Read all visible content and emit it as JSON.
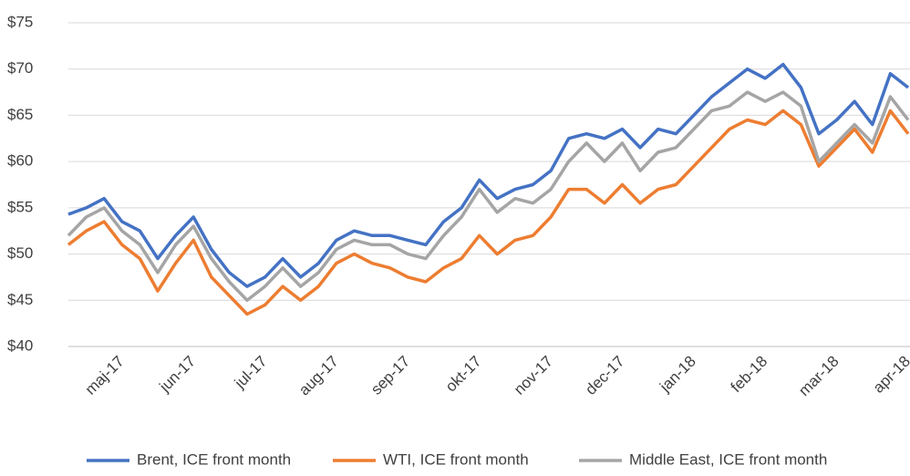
{
  "chart_data": {
    "type": "line",
    "categories": [
      null,
      null,
      null,
      "maj-17",
      null,
      null,
      null,
      "jun-17",
      null,
      null,
      null,
      "jul-17",
      null,
      null,
      null,
      "aug-17",
      null,
      null,
      null,
      "sep-17",
      null,
      null,
      null,
      "okt-17",
      null,
      null,
      null,
      "nov-17",
      null,
      null,
      null,
      "dec-17",
      null,
      null,
      null,
      "jan-18",
      null,
      null,
      null,
      "feb-18",
      null,
      null,
      null,
      "mar-18",
      null,
      null,
      null,
      "apr-18"
    ],
    "series": [
      {
        "name": "Brent, ICE front month",
        "color": "#4472c4",
        "values": [
          54.3,
          55,
          56,
          53.5,
          52.5,
          49.5,
          52,
          54,
          50.5,
          48,
          46.5,
          47.5,
          49.5,
          47.5,
          49,
          51.5,
          52.5,
          52,
          52,
          51.5,
          51,
          53.5,
          55,
          58,
          56,
          57,
          57.5,
          59,
          62.5,
          63,
          62.5,
          63.5,
          61.5,
          63.5,
          63,
          65,
          67,
          68.5,
          70,
          69,
          70.5,
          68,
          63,
          64.5,
          66.5,
          64,
          69.5,
          68
        ]
      },
      {
        "name": "WTI, ICE front month",
        "color": "#ed7d31",
        "values": [
          51,
          52.5,
          53.5,
          51,
          49.5,
          46,
          49,
          51.5,
          47.5,
          45.5,
          43.5,
          44.5,
          46.5,
          45,
          46.5,
          49,
          50,
          49,
          48.5,
          47.5,
          47,
          48.5,
          49.5,
          52,
          50,
          51.5,
          52,
          54,
          57,
          57,
          55.5,
          57.5,
          55.5,
          57,
          57.5,
          59.5,
          61.5,
          63.5,
          64.5,
          64,
          65.5,
          64,
          59.5,
          61.5,
          63.5,
          61,
          65.5,
          63
        ]
      },
      {
        "name": "Middle East, ICE front month",
        "color": "#a5a5a5",
        "values": [
          52,
          54,
          55,
          52.5,
          51,
          48,
          51,
          53,
          49.5,
          47,
          45,
          46.5,
          48.5,
          46.5,
          48,
          50.5,
          51.5,
          51,
          51,
          50,
          49.5,
          52,
          54,
          57,
          54.5,
          56,
          55.5,
          57,
          60,
          62,
          60,
          62,
          59,
          61,
          61.5,
          63.5,
          65.5,
          66,
          67.5,
          66.5,
          67.5,
          66,
          60,
          62,
          64,
          62,
          67,
          64.5
        ]
      }
    ],
    "ylim": [
      40,
      75
    ],
    "yticks": [
      {
        "value": 40,
        "label": "$40"
      },
      {
        "value": 45,
        "label": "$45"
      },
      {
        "value": 50,
        "label": "$50"
      },
      {
        "value": 55,
        "label": "$55"
      },
      {
        "value": 60,
        "label": "$60"
      },
      {
        "value": 65,
        "label": "$65"
      },
      {
        "value": 70,
        "label": "$70"
      },
      {
        "value": 75,
        "label": "$75"
      }
    ],
    "grid": true,
    "legend": "bottom"
  }
}
